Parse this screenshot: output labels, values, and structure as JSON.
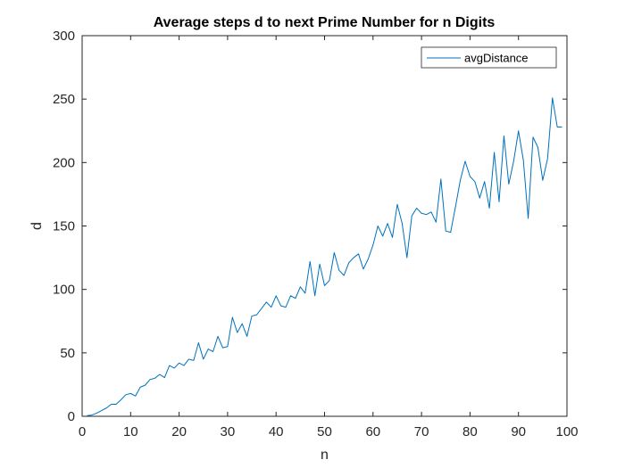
{
  "chart_data": {
    "type": "line",
    "title": "Average steps d to next Prime Number for n Digits",
    "xlabel": "n",
    "ylabel": "d",
    "xlim": [
      0,
      100
    ],
    "ylim": [
      0,
      300
    ],
    "xticks": [
      0,
      10,
      20,
      30,
      40,
      50,
      60,
      70,
      80,
      90,
      100
    ],
    "yticks": [
      0,
      50,
      100,
      150,
      200,
      250,
      300
    ],
    "grid": false,
    "legend_position": "top-right",
    "series": [
      {
        "name": "avgDistance",
        "color": "#0072BD",
        "x": [
          1,
          2,
          3,
          4,
          5,
          6,
          7,
          8,
          9,
          10,
          11,
          12,
          13,
          14,
          15,
          16,
          17,
          18,
          19,
          20,
          21,
          22,
          23,
          24,
          25,
          26,
          27,
          28,
          29,
          30,
          31,
          32,
          33,
          34,
          35,
          36,
          37,
          38,
          39,
          40,
          41,
          42,
          43,
          44,
          45,
          46,
          47,
          48,
          49,
          50,
          51,
          52,
          53,
          54,
          55,
          56,
          57,
          58,
          59,
          60,
          61,
          62,
          63,
          64,
          65,
          66,
          67,
          68,
          69,
          70,
          71,
          72,
          73,
          74,
          75,
          76,
          77,
          78,
          79,
          80,
          81,
          82,
          83,
          84,
          85,
          86,
          87,
          88,
          89,
          90,
          91,
          92,
          93,
          94,
          95,
          96,
          97,
          98,
          99
        ],
        "y": [
          0.5,
          1,
          2.5,
          4.5,
          6.5,
          9.5,
          9.5,
          13,
          17,
          18,
          16,
          23,
          24.5,
          29,
          30,
          33,
          30.5,
          40,
          38,
          42,
          40,
          45,
          44,
          58,
          45,
          53,
          51,
          63,
          54,
          55,
          78,
          66,
          73,
          63,
          79,
          80,
          85,
          90,
          86,
          95,
          87,
          86,
          95,
          93,
          102,
          97,
          122,
          95,
          120,
          103,
          107,
          129,
          115,
          111,
          121,
          125,
          128,
          116,
          124,
          135,
          150,
          142,
          152,
          141,
          167,
          152,
          125,
          158,
          164,
          160,
          159,
          161,
          153,
          187,
          146,
          145,
          165,
          186,
          201,
          189,
          185,
          172,
          185,
          164,
          208,
          169,
          221,
          183,
          201,
          225,
          202,
          156,
          220,
          212,
          186,
          203,
          251,
          228,
          228
        ]
      }
    ]
  }
}
